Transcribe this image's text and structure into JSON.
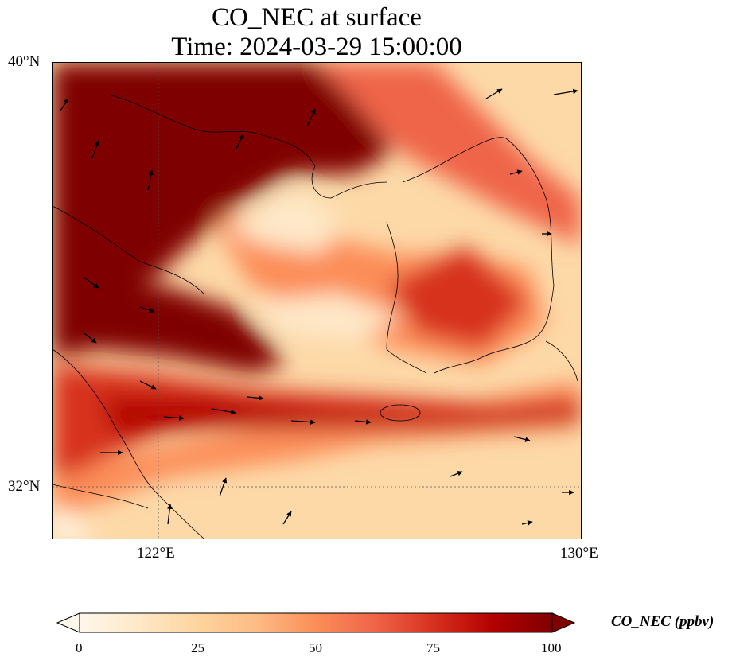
{
  "title": {
    "line1": "CO_NEC at surface",
    "line2": "Time: 2024-03-29 15:00:00"
  },
  "map": {
    "lat_ticks": [
      "40°N",
      "32°N"
    ],
    "lon_ticks": [
      "122°E",
      "130°E"
    ]
  },
  "colorbar": {
    "label": "CO_NEC (ppbv)",
    "ticks": [
      "0",
      "25",
      "50",
      "75",
      "100"
    ],
    "min": 0,
    "max": 100,
    "extend": "both",
    "colormap": [
      "#fff7ec",
      "#fee8c8",
      "#fdd49e",
      "#fdbb84",
      "#fc8d59",
      "#ef6548",
      "#d7301f",
      "#b30000",
      "#7f0000"
    ]
  }
}
